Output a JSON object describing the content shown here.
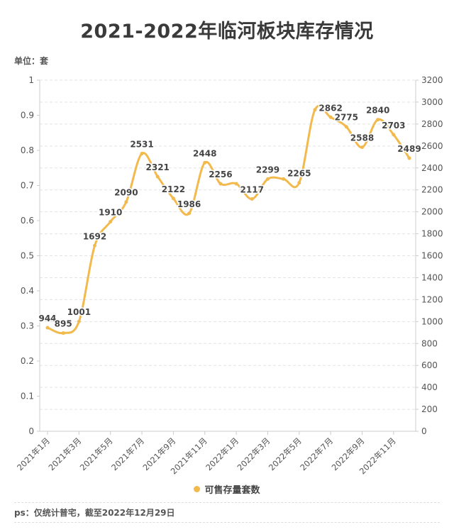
{
  "title": "2021-2022年临河板块库存情况",
  "unit_label": "单位：套",
  "footnote": "ps：仅统计普宅，截至2022年12月29日",
  "chart_data": {
    "type": "line",
    "title": "2021-2022年临河板块库存情况",
    "x": [
      "2021年1月",
      "2021年2月",
      "2021年3月",
      "2021年4月",
      "2021年5月",
      "2021年6月",
      "2021年7月",
      "2021年8月",
      "2021年9月",
      "2021年10月",
      "2021年11月",
      "2021年12月",
      "2022年1月",
      "2022年2月",
      "2022年3月",
      "2022年4月",
      "2022年5月",
      "2022年6月",
      "2022年7月",
      "2022年8月",
      "2022年9月",
      "2022年10月",
      "2022年11月",
      "2022年12月"
    ],
    "x_tick_labels": [
      "2021年1月",
      "2021年3月",
      "2021年5月",
      "2021年7月",
      "2021年9月",
      "2021年11月",
      "2022年1月",
      "2022年3月",
      "2022年5月",
      "2022年7月",
      "2022年9月",
      "2022年11月"
    ],
    "series": [
      {
        "name": "可售存量套数",
        "color": "#f2b94c",
        "values": [
          944,
          895,
          1001,
          1692,
          1910,
          2090,
          2531,
          2321,
          2122,
          1986,
          2448,
          2256,
          2256,
          2117,
          2299,
          2299,
          2265,
          2930,
          2862,
          2775,
          2588,
          2840,
          2703,
          2489
        ],
        "data_labels": [
          "944",
          "895",
          "1001",
          "1692",
          "1910",
          "2090",
          "2531",
          "2321",
          "2122",
          "1986",
          "2448",
          "2256",
          "",
          "2117",
          "2299",
          "",
          "2265",
          "",
          "2862",
          "2775",
          "2588",
          "2840",
          "2703",
          "2489"
        ]
      }
    ],
    "left_axis": {
      "ylim": [
        0,
        1
      ],
      "ticks": [
        "0",
        "0.1",
        "0.2",
        "0.3",
        "0.4",
        "0.5",
        "0.6",
        "0.7",
        "0.8",
        "0.9",
        "1"
      ]
    },
    "right_axis": {
      "ylim": [
        0,
        3200
      ],
      "ticks": [
        "0",
        "200",
        "400",
        "600",
        "800",
        "1000",
        "1200",
        "1400",
        "1600",
        "1800",
        "2000",
        "2200",
        "2400",
        "2600",
        "2800",
        "3000",
        "3200"
      ]
    },
    "grid": true,
    "legend": "bottom",
    "legend_label": "可售存量套数"
  }
}
